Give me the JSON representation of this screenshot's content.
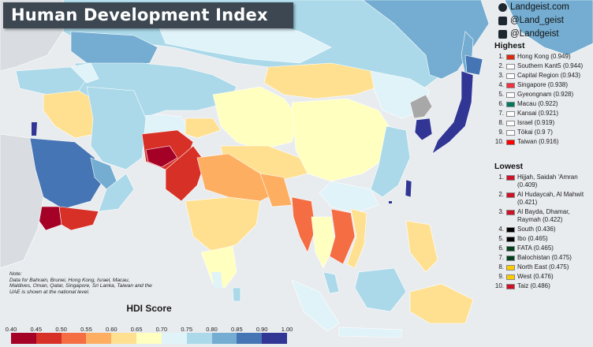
{
  "title": "Human Development Index",
  "social": [
    {
      "icon": "globe-icon",
      "text": "Landgeist.com"
    },
    {
      "icon": "instagram-icon",
      "text": "@Land_geist"
    },
    {
      "icon": "twitter-icon",
      "text": "@Landgeist"
    }
  ],
  "highest": {
    "heading": "Highest",
    "items": [
      {
        "num": "1.",
        "label": "Hong Kong (0.949)",
        "flag_color": "#de2910"
      },
      {
        "num": "2.",
        "label": "Southern Kant5 (0.944)",
        "flag_color": "#ffffff"
      },
      {
        "num": "3.",
        "label": "Capital Region (0.943)",
        "flag_color": "#ffffff"
      },
      {
        "num": "4.",
        "label": "Singapore (0.938)",
        "flag_color": "#ef3340"
      },
      {
        "num": "5.",
        "label": "Gyeongnam (0.928)",
        "flag_color": "#ffffff"
      },
      {
        "num": "6.",
        "label": "Macau (0.922)",
        "flag_color": "#00785e"
      },
      {
        "num": "7.",
        "label": "Kansai (0.921)",
        "flag_color": "#ffffff"
      },
      {
        "num": "8.",
        "label": "Israel (0.919)",
        "flag_color": "#ffffff"
      },
      {
        "num": "9.",
        "label": "Tōkai (0.9 7)",
        "flag_color": "#ffffff"
      },
      {
        "num": "10.",
        "label": "Taiwan (0.916)",
        "flag_color": "#fe0000"
      }
    ]
  },
  "lowest": {
    "heading": "Lowest",
    "items": [
      {
        "num": "1.",
        "label": "Hijjah, Saidah 'Amran (0.409)",
        "flag_color": "#ce1126"
      },
      {
        "num": "2.",
        "label": "Al Hudaycah, Al Mahwit (0.421)",
        "flag_color": "#ce1126"
      },
      {
        "num": "3.",
        "label": "Al Bayda, Dhamar, Raymah (0.422)",
        "flag_color": "#ce1126"
      },
      {
        "num": "4.",
        "label": "South (0.436)",
        "flag_color": "#000000"
      },
      {
        "num": "5.",
        "label": "Ibo (0.465)",
        "flag_color": "#000000"
      },
      {
        "num": "6.",
        "label": "FATA (0.465)",
        "flag_color": "#01411c"
      },
      {
        "num": "7.",
        "label": "Balochistan (0.475)",
        "flag_color": "#01411c"
      },
      {
        "num": "8.",
        "label": "North East (0.475)",
        "flag_color": "#fecb00"
      },
      {
        "num": "9.",
        "label": "West (0.476)",
        "flag_color": "#fecb00"
      },
      {
        "num": "10.",
        "label": "Taiz (0.486)",
        "flag_color": "#ce1126"
      }
    ]
  },
  "note": {
    "heading": "Note:",
    "text": "Data for Bahrain, Brunei, Hong Kong, Israel, Macau, Maldives, Oman, Qatar, Singapore, Sri Lanka, Taiwan and the UAE is shown at the national level."
  },
  "legend": {
    "title": "HDI Score",
    "ticks": [
      "0.40",
      "0.45",
      "0.50",
      "0.55",
      "0.60",
      "0.65",
      "0.70",
      "0.75",
      "0.80",
      "0.85",
      "0.90",
      "1.00"
    ],
    "colors": [
      "#a50026",
      "#d73027",
      "#f46d43",
      "#fdae61",
      "#fee090",
      "#ffffbf",
      "#e0f3f8",
      "#abd9e9",
      "#74add1",
      "#4575b4",
      "#313695"
    ]
  },
  "map_colors": {
    "ocean": "#e9ecef",
    "no_data": "#a8a8a8",
    "border": "#ffffff"
  }
}
